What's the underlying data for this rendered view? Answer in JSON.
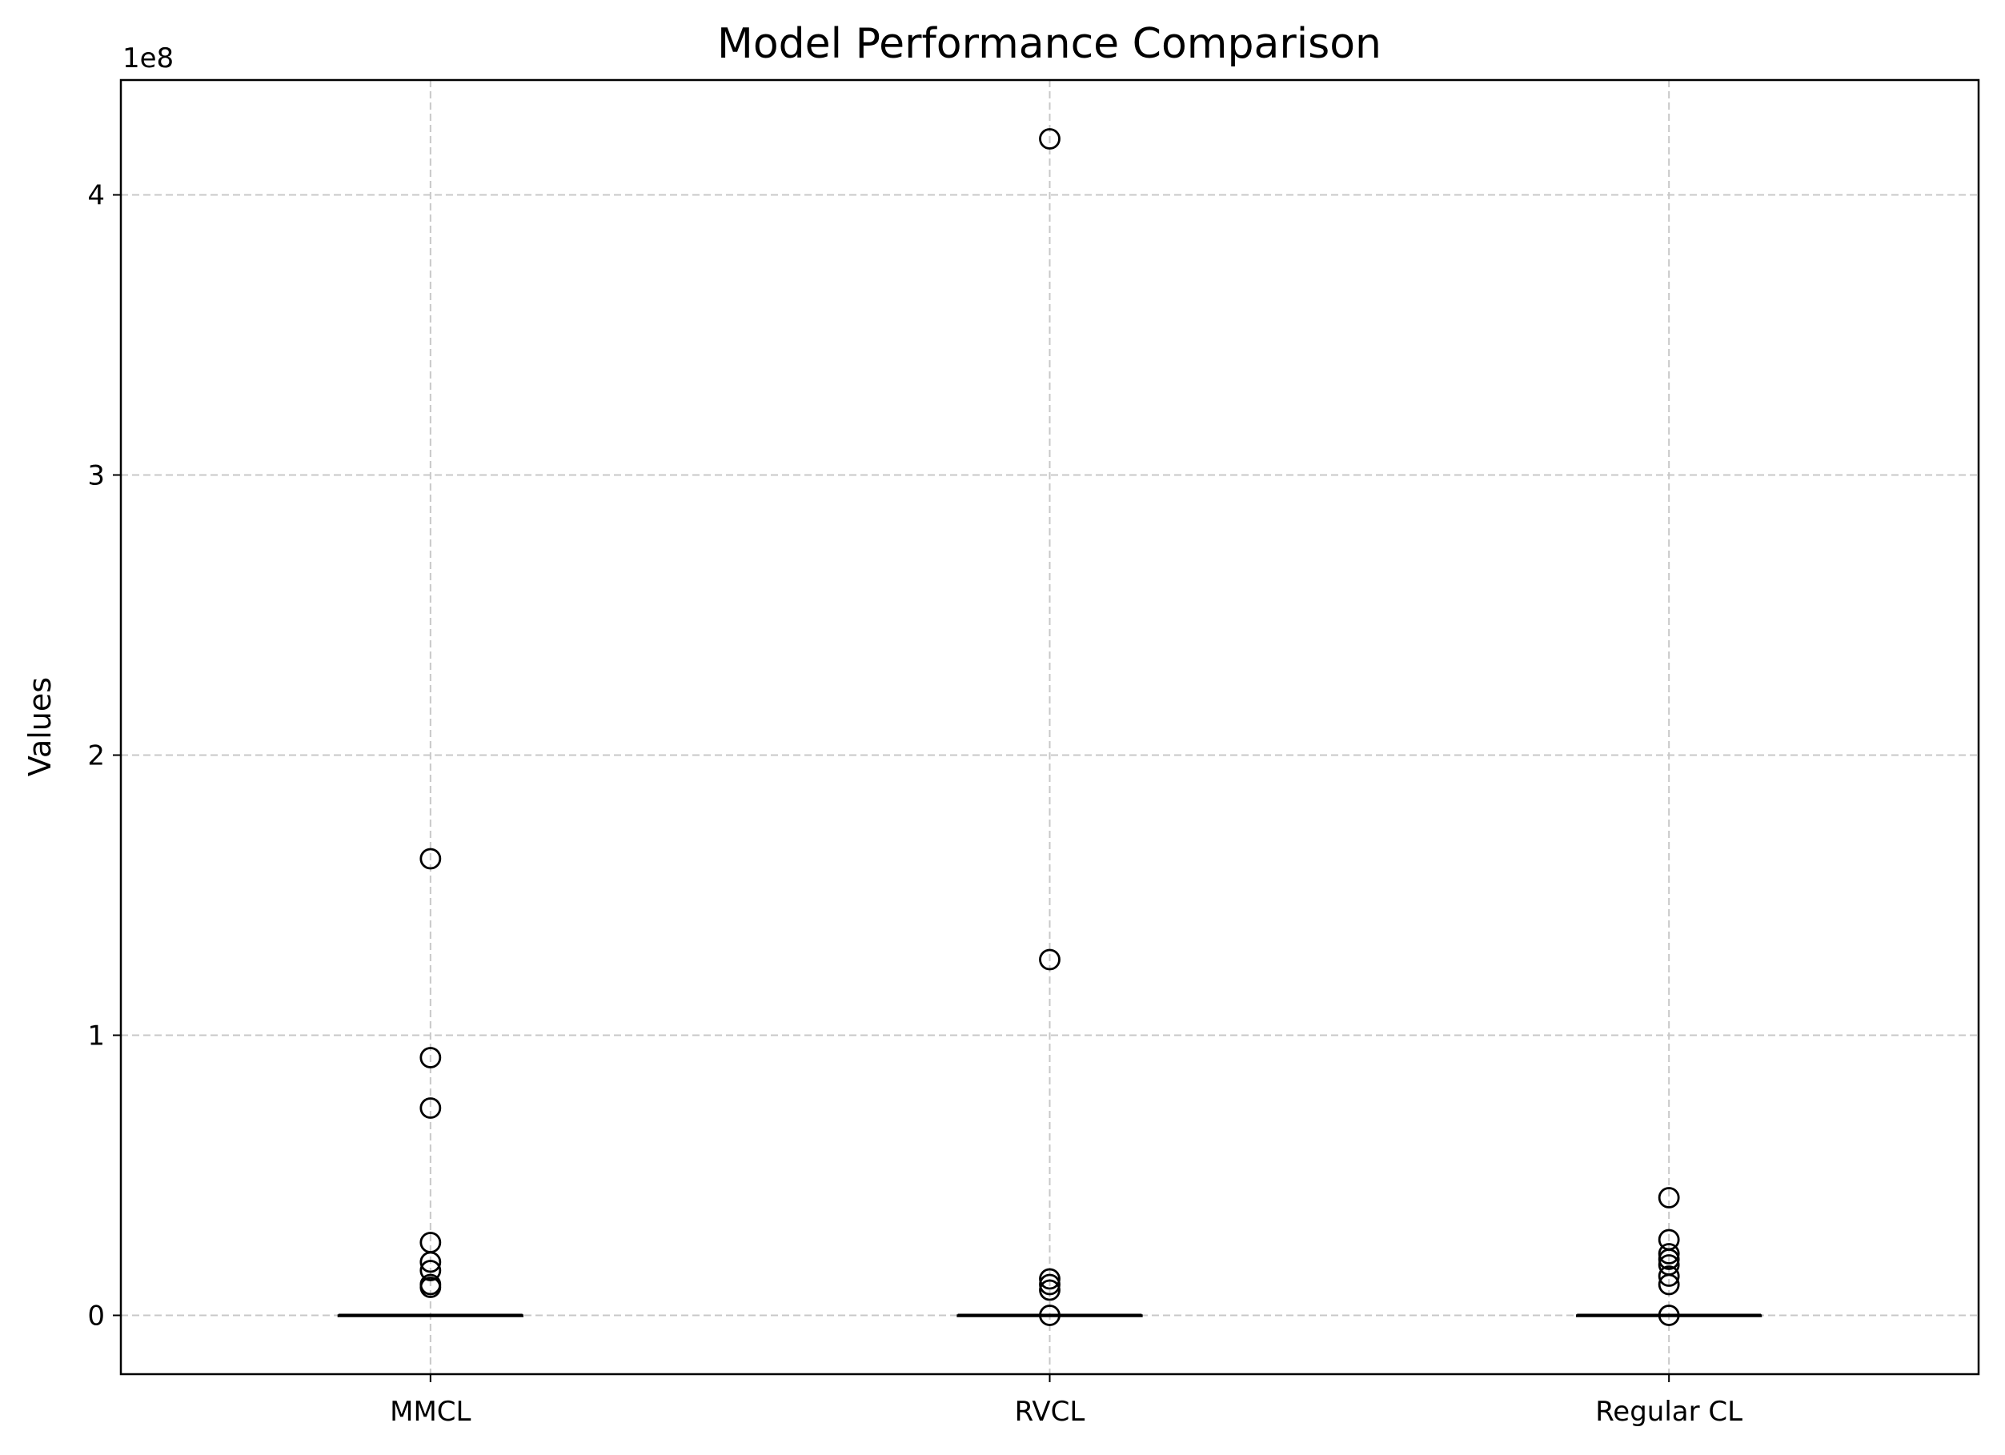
{
  "chart_data": {
    "type": "box",
    "title": "Model Performance Comparison",
    "xlabel": "",
    "ylabel": "Values",
    "y_offset_label": "1e8",
    "y_scale_factor": 100000000,
    "ylim": [
      -21000000,
      441000000
    ],
    "yticks": [
      0,
      100000000,
      200000000,
      300000000,
      400000000
    ],
    "ytick_labels": [
      "0",
      "1",
      "2",
      "3",
      "4"
    ],
    "grid": true,
    "categories": [
      "MMCL",
      "RVCL",
      "Regular CL"
    ],
    "boxes": [
      {
        "name": "MMCL",
        "median": 0,
        "q1": 0,
        "q3": 0,
        "whisker_low": 0,
        "whisker_high": 0,
        "outliers": [
          163000000,
          92000000,
          74000000,
          26000000,
          19000000,
          16000000,
          11000000,
          10000000
        ]
      },
      {
        "name": "RVCL",
        "median": 0,
        "q1": 0,
        "q3": 0,
        "whisker_low": 0,
        "whisker_high": 0,
        "outliers": [
          420000000,
          127000000,
          13000000,
          11000000,
          9000000,
          0
        ]
      },
      {
        "name": "Regular CL",
        "median": 0,
        "q1": 0,
        "q3": 0,
        "whisker_low": 0,
        "whisker_high": 0,
        "outliers": [
          42000000,
          27000000,
          22000000,
          20000000,
          18000000,
          14000000,
          11000000,
          0
        ]
      }
    ],
    "colors": {
      "grid": "#c8c8c8",
      "axes": "#000000",
      "marker_edge": "#000000",
      "median": "#000000"
    }
  }
}
